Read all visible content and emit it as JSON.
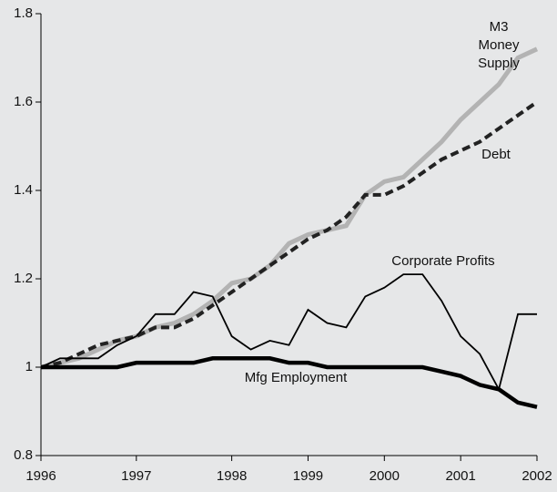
{
  "chart_data": {
    "type": "line",
    "categories": [
      "1996",
      null,
      null,
      null,
      null,
      "1997",
      null,
      null,
      null,
      null,
      "1998",
      null,
      null,
      null,
      "1999",
      null,
      null,
      null,
      "2000",
      null,
      null,
      null,
      "2001",
      null,
      null,
      null,
      "2002"
    ],
    "series": [
      {
        "name": "M3\nMoney Supply",
        "color": "#b3b3b3",
        "values": [
          1.0,
          1.01,
          1.02,
          1.04,
          1.06,
          1.07,
          1.09,
          1.1,
          1.12,
          1.15,
          1.19,
          1.2,
          1.23,
          1.28,
          1.3,
          1.31,
          1.32,
          1.39,
          1.42,
          1.43,
          1.47,
          1.51,
          1.56,
          1.6,
          1.64,
          1.7,
          1.72
        ]
      },
      {
        "name": "Debt",
        "color": "#222222",
        "dashed": true,
        "values": [
          1.0,
          1.01,
          1.03,
          1.05,
          1.06,
          1.07,
          1.09,
          1.09,
          1.11,
          1.14,
          1.17,
          1.2,
          1.23,
          1.26,
          1.29,
          1.31,
          1.34,
          1.39,
          1.39,
          1.41,
          1.44,
          1.47,
          1.49,
          1.51,
          1.54,
          1.57,
          1.6
        ]
      },
      {
        "name": "Corporate Profits",
        "color": "#000000",
        "values": [
          1.0,
          1.02,
          1.02,
          1.02,
          1.05,
          1.07,
          1.12,
          1.12,
          1.17,
          1.16,
          1.07,
          1.04,
          1.06,
          1.05,
          1.13,
          1.1,
          1.09,
          1.16,
          1.18,
          1.21,
          1.21,
          1.15,
          1.07,
          1.03,
          0.95,
          1.12,
          1.12
        ]
      },
      {
        "name": "Mfg Employment",
        "color": "#000000",
        "values": [
          1.0,
          1.0,
          1.0,
          1.0,
          1.0,
          1.01,
          1.01,
          1.01,
          1.01,
          1.02,
          1.02,
          1.02,
          1.02,
          1.01,
          1.01,
          1.0,
          1.0,
          1.0,
          1.0,
          1.0,
          1.0,
          0.99,
          0.98,
          0.96,
          0.95,
          0.92,
          0.91
        ]
      }
    ],
    "ylim": [
      0.8,
      1.8
    ],
    "yticks": [
      0.8,
      1,
      1.2,
      1.4,
      1.6,
      1.8
    ]
  }
}
